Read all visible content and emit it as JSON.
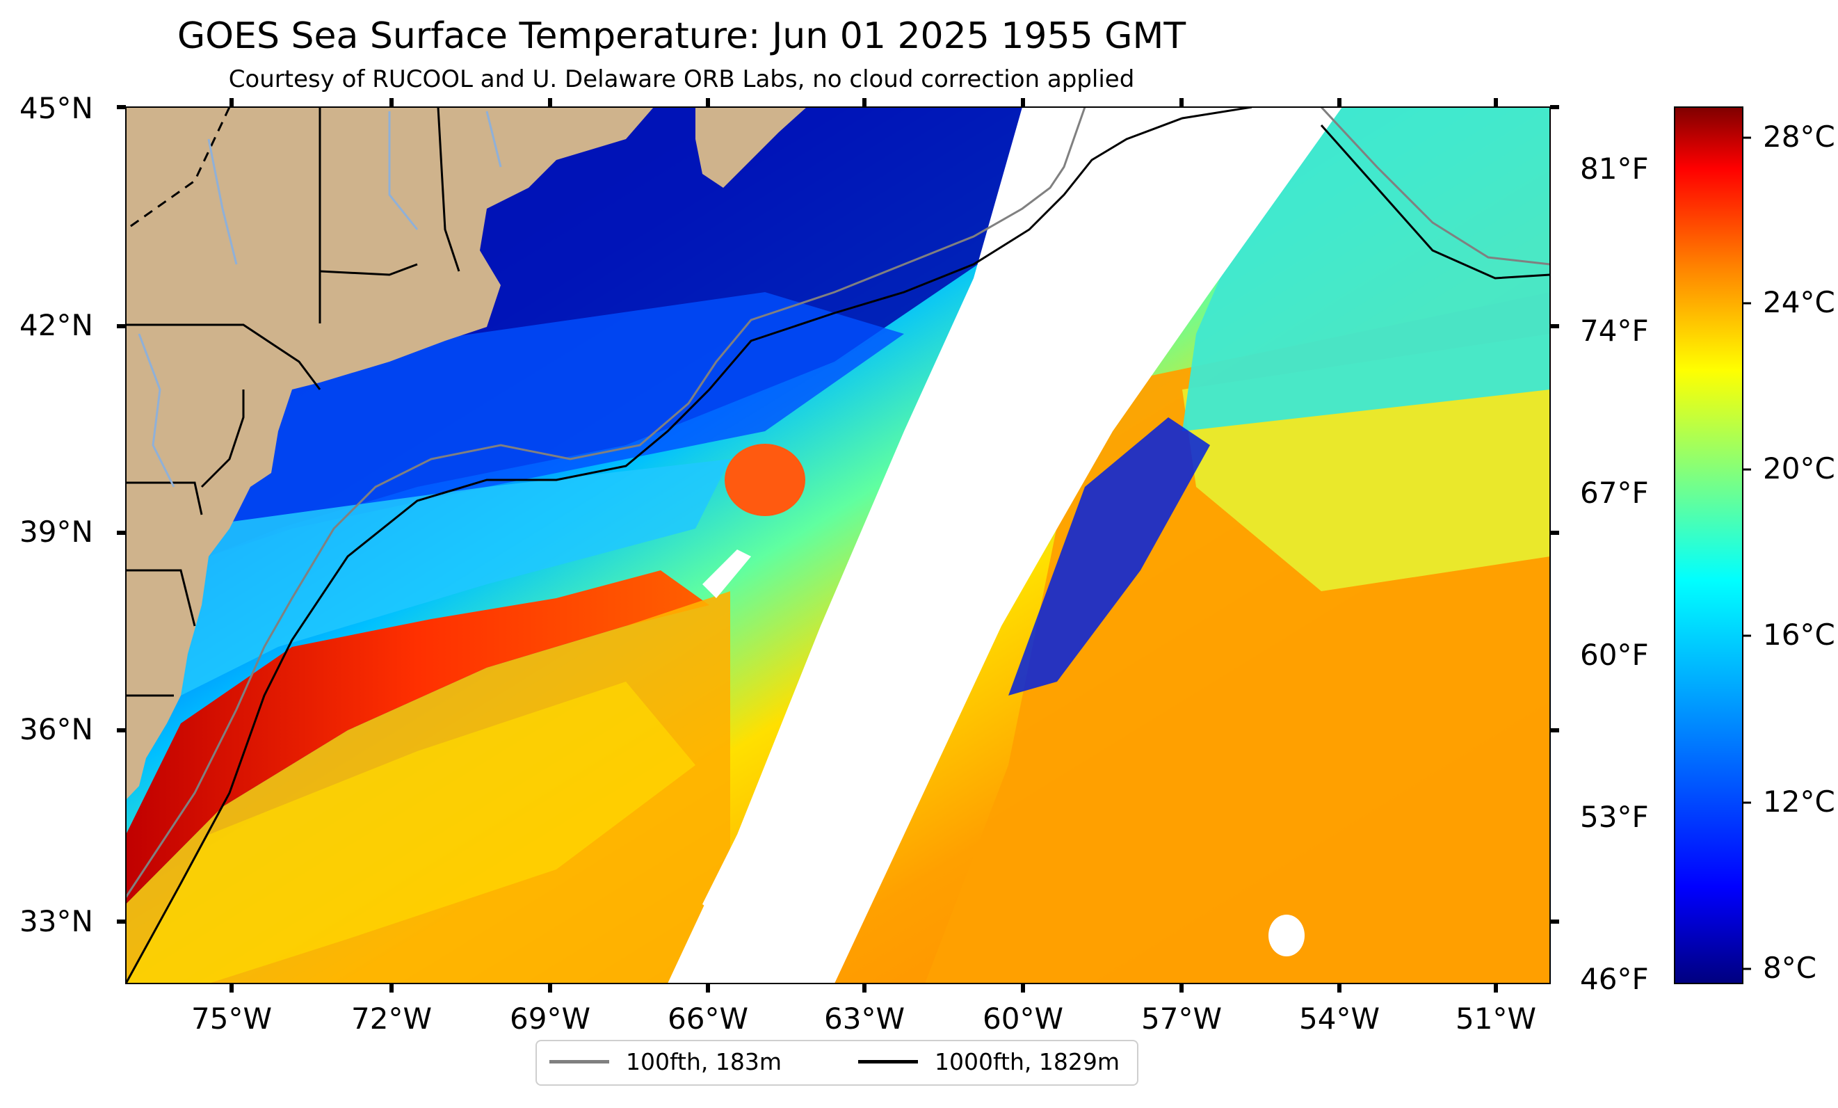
{
  "title": "GOES Sea Surface Temperature: Jun 01 2025 1955 GMT",
  "subtitle": "Courtesy of RUCOOL and U. Delaware ORB Labs, no cloud correction applied",
  "lat_labels": [
    "45°N",
    "42°N",
    "39°N",
    "36°N",
    "33°N"
  ],
  "lon_labels": [
    "75°W",
    "72°W",
    "69°W",
    "66°W",
    "63°W",
    "60°W",
    "57°W",
    "54°W",
    "51°W"
  ],
  "fahrenheit_labels": [
    "81°F",
    "74°F",
    "67°F",
    "60°F",
    "53°F",
    "46°F"
  ],
  "colorbar": {
    "labels": [
      "28°C",
      "24°C",
      "20°C",
      "16°C",
      "12°C",
      "8°C"
    ],
    "min_c": 7,
    "max_c": 29,
    "colormap": "jet",
    "colors": [
      "#00007f",
      "#0000ff",
      "#007fff",
      "#00ffff",
      "#7fff7f",
      "#ffff00",
      "#ff7f00",
      "#ff0000",
      "#7f0000"
    ]
  },
  "legend": {
    "items": [
      {
        "label": "100fth, 183m",
        "color": "#808080"
      },
      {
        "label": "1000fth, 1829m",
        "color": "#000000"
      }
    ]
  },
  "colors": {
    "land": "#cfb38c",
    "no_data": "#ffffff",
    "isobath_100": "#808080",
    "isobath_1000": "#000000",
    "rivers": "#8fb0d8"
  }
}
